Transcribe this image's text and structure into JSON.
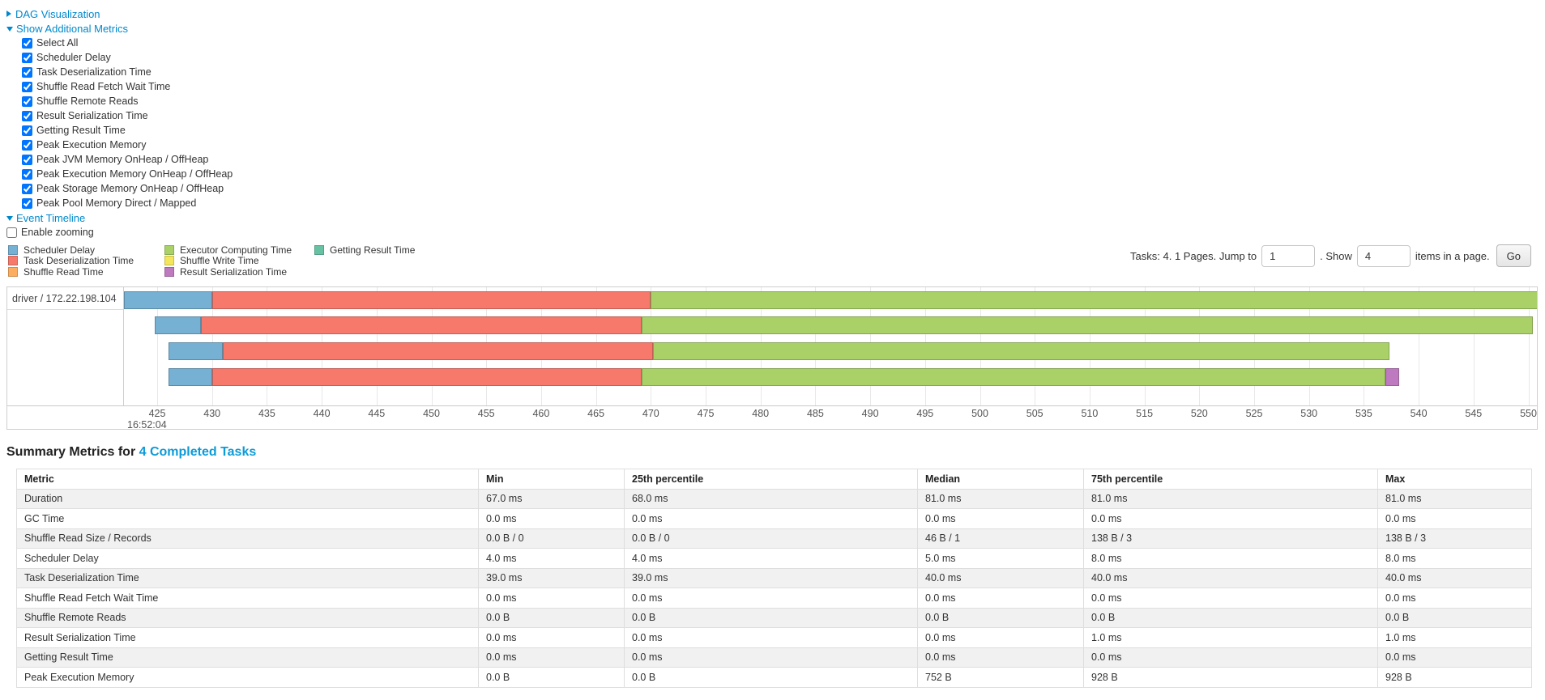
{
  "controls": {
    "dag_label": "DAG Visualization",
    "metrics_toggle_label": "Show Additional Metrics",
    "metric_checkboxes": [
      "Select All",
      "Scheduler Delay",
      "Task Deserialization Time",
      "Shuffle Read Fetch Wait Time",
      "Shuffle Remote Reads",
      "Result Serialization Time",
      "Getting Result Time",
      "Peak Execution Memory",
      "Peak JVM Memory OnHeap / OffHeap",
      "Peak Execution Memory OnHeap / OffHeap",
      "Peak Storage Memory OnHeap / OffHeap",
      "Peak Pool Memory Direct / Mapped"
    ],
    "event_timeline_label": "Event Timeline",
    "enable_zooming_label": "Enable zooming"
  },
  "pagination": {
    "prefix": "Tasks: 4. 1 Pages. Jump to",
    "jump_value": "1",
    "mid": ". Show",
    "show_value": "4",
    "suffix": "items in a page.",
    "go_label": "Go"
  },
  "colors": {
    "scheduler_delay": "#76B0D2",
    "task_deserialization": "#F6796C",
    "shuffle_read": "#FCAD60",
    "executor_computing": "#A9D168",
    "shuffle_write": "#F3E55C",
    "getting_result": "#67C2A3",
    "result_serialization": "#BE7ABE",
    "link": "#0088cc",
    "heading_link": "#0b9bd8"
  },
  "chart_data": {
    "type": "timeline",
    "group_label": "driver / 172.22.198.104",
    "origin_time_label": "16:52:04",
    "axis_ticks": [
      425,
      430,
      435,
      440,
      445,
      450,
      455,
      460,
      465,
      470,
      475,
      480,
      485,
      490,
      495,
      500,
      505,
      510,
      515,
      520,
      525,
      530,
      535,
      540,
      545,
      550
    ],
    "axis_unit": "ms after 16:52:04",
    "legend_columns": [
      [
        {
          "id": "scheduler_delay",
          "label": "Scheduler Delay"
        },
        {
          "id": "task_deserialization",
          "label": "Task Deserialization Time"
        },
        {
          "id": "shuffle_read",
          "label": "Shuffle Read Time"
        }
      ],
      [
        {
          "id": "executor_computing",
          "label": "Executor Computing Time"
        },
        {
          "id": "shuffle_write",
          "label": "Shuffle Write Time"
        },
        {
          "id": "result_serialization",
          "label": "Result Serialization Time"
        }
      ],
      [
        {
          "id": "getting_result",
          "label": "Getting Result Time"
        }
      ]
    ],
    "tasks": [
      {
        "segments": [
          {
            "type": "scheduler_delay",
            "start": 422.0,
            "end": 430.0
          },
          {
            "type": "task_deserialization",
            "start": 430.0,
            "end": 470.0
          },
          {
            "type": "executor_computing",
            "start": 470.0,
            "end": 551.0
          }
        ]
      },
      {
        "segments": [
          {
            "type": "scheduler_delay",
            "start": 424.8,
            "end": 429.0
          },
          {
            "type": "task_deserialization",
            "start": 429.0,
            "end": 469.2
          },
          {
            "type": "executor_computing",
            "start": 469.2,
            "end": 550.4
          }
        ]
      },
      {
        "segments": [
          {
            "type": "scheduler_delay",
            "start": 426.0,
            "end": 431.0
          },
          {
            "type": "task_deserialization",
            "start": 431.0,
            "end": 470.2
          },
          {
            "type": "executor_computing",
            "start": 470.2,
            "end": 537.3
          }
        ]
      },
      {
        "segments": [
          {
            "type": "scheduler_delay",
            "start": 426.0,
            "end": 430.0
          },
          {
            "type": "task_deserialization",
            "start": 430.0,
            "end": 469.2
          },
          {
            "type": "executor_computing",
            "start": 469.2,
            "end": 537.0
          },
          {
            "type": "result_serialization",
            "start": 537.0,
            "end": 538.2
          }
        ]
      }
    ]
  },
  "summary": {
    "title_prefix": "Summary Metrics for ",
    "title_link": "4 Completed Tasks",
    "table": {
      "headers": [
        "Metric",
        "Min",
        "25th percentile",
        "Median",
        "75th percentile",
        "Max"
      ],
      "rows": [
        [
          "Duration",
          "67.0 ms",
          "68.0 ms",
          "81.0 ms",
          "81.0 ms",
          "81.0 ms"
        ],
        [
          "GC Time",
          "0.0 ms",
          "0.0 ms",
          "0.0 ms",
          "0.0 ms",
          "0.0 ms"
        ],
        [
          "Shuffle Read Size / Records",
          "0.0 B / 0",
          "0.0 B / 0",
          "46 B / 1",
          "138 B / 3",
          "138 B / 3"
        ],
        [
          "Scheduler Delay",
          "4.0 ms",
          "4.0 ms",
          "5.0 ms",
          "8.0 ms",
          "8.0 ms"
        ],
        [
          "Task Deserialization Time",
          "39.0 ms",
          "39.0 ms",
          "40.0 ms",
          "40.0 ms",
          "40.0 ms"
        ],
        [
          "Shuffle Read Fetch Wait Time",
          "0.0 ms",
          "0.0 ms",
          "0.0 ms",
          "0.0 ms",
          "0.0 ms"
        ],
        [
          "Shuffle Remote Reads",
          "0.0 B",
          "0.0 B",
          "0.0 B",
          "0.0 B",
          "0.0 B"
        ],
        [
          "Result Serialization Time",
          "0.0 ms",
          "0.0 ms",
          "0.0 ms",
          "1.0 ms",
          "1.0 ms"
        ],
        [
          "Getting Result Time",
          "0.0 ms",
          "0.0 ms",
          "0.0 ms",
          "0.0 ms",
          "0.0 ms"
        ],
        [
          "Peak Execution Memory",
          "0.0 B",
          "0.0 B",
          "752 B",
          "928 B",
          "928 B"
        ]
      ]
    }
  }
}
